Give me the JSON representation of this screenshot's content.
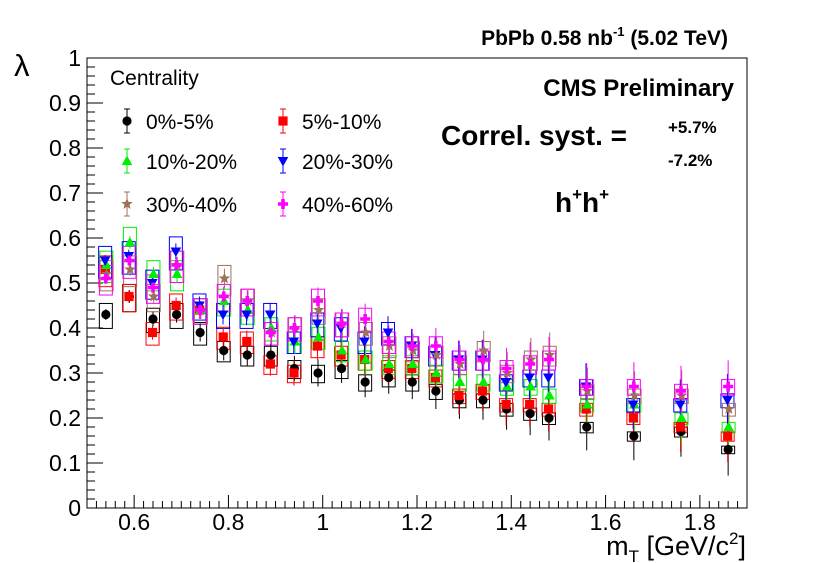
{
  "chart_data": {
    "type": "scatter",
    "header": {
      "prefix": "PbPb 0.58 nb",
      "sup": "-1",
      "suffix": " (5.02 TeV)"
    },
    "experiment_label": "CMS Preliminary",
    "syst": {
      "label": "Correl. syst. =",
      "up": "+5.7%",
      "down": "-7.2%"
    },
    "pair": {
      "base1": "h",
      "sup1": "+",
      "base2": "h",
      "sup2": "+"
    },
    "ylabel": "λ",
    "xlabel": {
      "main": "m",
      "sub": "T",
      "unit": " [GeV/c",
      "sup": "2",
      "close": "]"
    },
    "xlim": [
      0.5,
      1.9
    ],
    "ylim": [
      0,
      1
    ],
    "xticks": [
      "0.6",
      "0.8",
      "1",
      "1.2",
      "1.4",
      "1.6",
      "1.8"
    ],
    "yticks": [
      "0",
      "0.1",
      "0.2",
      "0.3",
      "0.4",
      "0.5",
      "0.6",
      "0.7",
      "0.8",
      "0.9",
      "1"
    ],
    "legend_title": "Centrality",
    "x": [
      0.54,
      0.59,
      0.64,
      0.69,
      0.74,
      0.79,
      0.84,
      0.89,
      0.94,
      0.99,
      1.04,
      1.09,
      1.14,
      1.19,
      1.24,
      1.29,
      1.34,
      1.39,
      1.44,
      1.48,
      1.56,
      1.66,
      1.76,
      1.86
    ],
    "series": [
      {
        "name": "0%-5%",
        "color": "#000000",
        "marker": "circle",
        "values": [
          0.43,
          0.47,
          0.42,
          0.43,
          0.39,
          0.35,
          0.34,
          0.34,
          0.31,
          0.3,
          0.31,
          0.28,
          0.29,
          0.28,
          0.26,
          0.24,
          0.24,
          0.22,
          0.21,
          0.2,
          0.18,
          0.16,
          0.17,
          0.13
        ]
      },
      {
        "name": "5%-10%",
        "color": "#ff0000",
        "marker": "square",
        "values": [
          0.53,
          0.47,
          0.39,
          0.45,
          0.44,
          0.38,
          0.37,
          0.32,
          0.3,
          0.36,
          0.34,
          0.33,
          0.31,
          0.31,
          0.29,
          0.25,
          0.26,
          0.23,
          0.23,
          0.22,
          0.22,
          0.2,
          0.18,
          0.16
        ]
      },
      {
        "name": "10%-20%",
        "color": "#00ee00",
        "marker": "triangle-up",
        "values": [
          0.54,
          0.59,
          0.52,
          0.52,
          0.44,
          0.46,
          0.44,
          0.4,
          0.37,
          0.38,
          0.35,
          0.33,
          0.32,
          0.32,
          0.3,
          0.28,
          0.28,
          0.27,
          0.27,
          0.25,
          0.23,
          0.23,
          0.2,
          0.18
        ]
      },
      {
        "name": "20%-30%",
        "color": "#0000ff",
        "marker": "triangle-down",
        "values": [
          0.55,
          0.56,
          0.5,
          0.57,
          0.45,
          0.43,
          0.43,
          0.43,
          0.37,
          0.41,
          0.4,
          0.37,
          0.39,
          0.36,
          0.34,
          0.33,
          0.33,
          0.28,
          0.29,
          0.29,
          0.27,
          0.23,
          0.23,
          0.24
        ]
      },
      {
        "name": "30%-40%",
        "color": "#a0705a",
        "marker": "star",
        "values": [
          0.52,
          0.53,
          0.47,
          0.54,
          0.44,
          0.51,
          0.46,
          0.39,
          0.4,
          0.44,
          0.41,
          0.39,
          0.36,
          0.35,
          0.34,
          0.32,
          0.35,
          0.3,
          0.33,
          0.34,
          0.26,
          0.25,
          0.25,
          0.22
        ]
      },
      {
        "name": "40%-60%",
        "color": "#ff00ff",
        "marker": "cross",
        "values": [
          0.51,
          0.55,
          0.49,
          0.54,
          0.44,
          0.47,
          0.46,
          0.39,
          0.4,
          0.46,
          0.41,
          0.42,
          0.37,
          0.36,
          0.36,
          0.33,
          0.33,
          0.31,
          0.32,
          0.33,
          0.27,
          0.27,
          0.26,
          0.27
        ]
      }
    ]
  }
}
